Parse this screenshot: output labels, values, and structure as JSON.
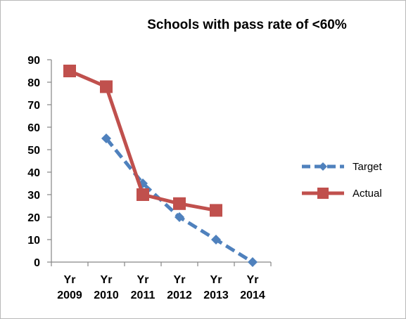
{
  "chart_data": {
    "type": "line",
    "title": "Schools with pass rate of <60%",
    "categories": [
      [
        "Yr",
        "2009"
      ],
      [
        "Yr",
        "2010"
      ],
      [
        "Yr",
        "2011"
      ],
      [
        "Yr",
        "2012"
      ],
      [
        "Yr",
        "2013"
      ],
      [
        "Yr",
        "2014"
      ]
    ],
    "ylim": [
      0,
      90
    ],
    "yticks": [
      "0",
      "10",
      "20",
      "30",
      "40",
      "50",
      "60",
      "70",
      "80",
      "90"
    ],
    "grid": false,
    "legend_position": "right",
    "series": [
      {
        "name": "Target",
        "values": [
          null,
          55,
          35,
          20,
          10,
          0
        ],
        "color": "#4f81bd",
        "style": "dashed",
        "marker": "diamond"
      },
      {
        "name": "Actual",
        "values": [
          85,
          78,
          30,
          26,
          23,
          null
        ],
        "color": "#c0504d",
        "style": "solid",
        "marker": "square"
      }
    ]
  }
}
